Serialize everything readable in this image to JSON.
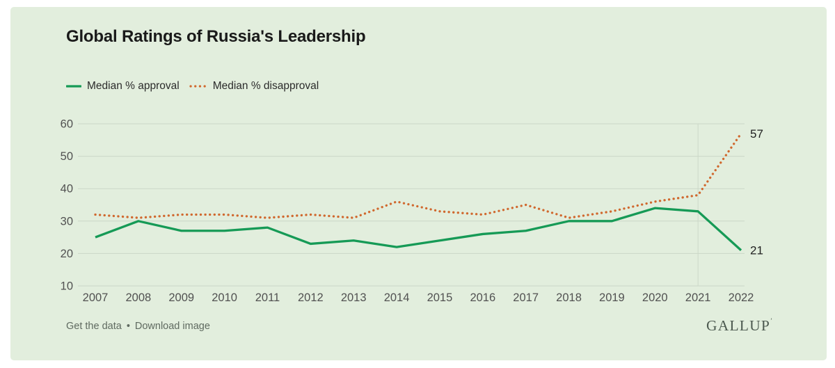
{
  "card": {
    "title": "Global Ratings of Russia's Leadership",
    "footer": {
      "get_data_label": "Get the data",
      "separator": "•",
      "download_label": "Download image",
      "brand": "GALLUP",
      "brand_mark": "’"
    }
  },
  "legend": [
    {
      "label": "Median % approval",
      "style": "solid",
      "color": "#169a56"
    },
    {
      "label": "Median % disapproval",
      "style": "dotted",
      "color": "#d0682e"
    }
  ],
  "colors": {
    "card_background": "#e2eedd",
    "gridline": "#cbd7c7",
    "hover_line": "#ccd8c8",
    "approval_green": "#169a56",
    "disapproval_orange": "#d0682e",
    "tick_text": "#515151",
    "title_text": "#1a1a1a"
  },
  "chart_data": {
    "type": "line",
    "title": "Global Ratings of Russia's Leadership",
    "x": [
      2007,
      2008,
      2009,
      2010,
      2011,
      2012,
      2013,
      2014,
      2015,
      2016,
      2017,
      2018,
      2019,
      2020,
      2021,
      2022
    ],
    "series": [
      {
        "name": "Median % approval",
        "color": "#169a56",
        "style": "solid",
        "values": [
          25,
          30,
          27,
          27,
          28,
          23,
          24,
          22,
          24,
          26,
          27,
          30,
          30,
          34,
          33,
          21
        ],
        "end_label": "21"
      },
      {
        "name": "Median % disapproval",
        "color": "#d0682e",
        "style": "dotted",
        "values": [
          32,
          31,
          32,
          32,
          31,
          32,
          31,
          36,
          33,
          32,
          35,
          31,
          33,
          36,
          38,
          57
        ],
        "end_label": "57"
      }
    ],
    "xlabel": "",
    "ylabel": "",
    "ylim": [
      10,
      60
    ],
    "yticks": [
      10,
      20,
      30,
      40,
      50,
      60
    ],
    "grid": "horizontal",
    "legend_position": "top-left",
    "hover_line_year": 2021
  }
}
